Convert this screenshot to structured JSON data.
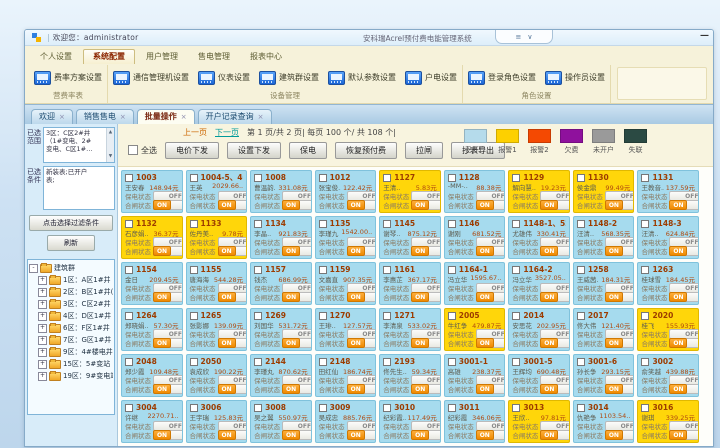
{
  "window": {
    "welcome_label": "欢迎您：administrator",
    "title": "安科瑞Acrel预付费电能管理系统"
  },
  "icons": {
    "logo": "app-logo",
    "collapse": "≡",
    "dropdown": "∨",
    "minimize": "—",
    "tab_close": "×",
    "scroll_up": "▲",
    "scroll_down": "▼",
    "node_expand": "+",
    "node_collapse": "-"
  },
  "menu_tabs": [
    {
      "label": "个人设置",
      "active": false
    },
    {
      "label": "系统配置",
      "active": true
    },
    {
      "label": "用户管理",
      "active": false
    },
    {
      "label": "售电管理",
      "active": false
    },
    {
      "label": "报表中心",
      "active": false
    }
  ],
  "ribbon_groups": [
    {
      "label": "营费率表",
      "buttons": [
        "费率方案设置"
      ]
    },
    {
      "label": "设备管理",
      "buttons": [
        "通信管理机设置",
        "仪表设置",
        "建筑群设置",
        "默认参数设置",
        "户电设置"
      ]
    },
    {
      "label": "角色设置",
      "buttons": [
        "登录角色设置",
        "操作员设置"
      ]
    }
  ],
  "doc_tabs": [
    {
      "label": "欢迎",
      "active": false
    },
    {
      "label": "销售售电",
      "active": false
    },
    {
      "label": "批量操作",
      "active": true
    },
    {
      "label": "开户记录查询",
      "active": false
    }
  ],
  "sidebar": {
    "range_label": "已选 范围",
    "range_lines": [
      "3区：C区2#井",
      "（1#变电、2#",
      "变电、C区1#…"
    ],
    "cond_label": "已选 条件",
    "cond_lines": [
      "新装表;已开户",
      "表;"
    ],
    "filter_button": "点击选择过滤条件",
    "refresh_button": "刷新",
    "tree_root": "建筑群",
    "tree_items": [
      "1区：A区1#井",
      "2区：B区1#井(B区1#…",
      "3区：C区2#井（1#宿…",
      "4区：D区1#井（D区1…",
      "6区：F区1#井（F区1#…",
      "7区：G区1#井",
      "9区：4#楼电井（4#楼…",
      "15区：5#变站（3#变…",
      "19区：9#变电站（2#…"
    ]
  },
  "toolbar": {
    "prev": "上一页",
    "next": "下一页",
    "page_info": "第 1 页/共 2 页|  每页 100 个/ 共 108 个|",
    "select_all": "全选",
    "buttons": [
      "电价下发",
      "设置下发",
      "保电",
      "恢复预付费",
      "拉闸",
      "抄表导出"
    ]
  },
  "legend": [
    {
      "label": "已开户",
      "color": "#b5dbeb"
    },
    {
      "label": "报警1",
      "color": "#fdd000"
    },
    {
      "label": "报警2",
      "color": "#f44902"
    },
    {
      "label": "欠费",
      "color": "#8f119d"
    },
    {
      "label": "未开户",
      "color": "#9a9a9a"
    },
    {
      "label": "失联",
      "color": "#2b4a43"
    }
  ],
  "card_labels": {
    "bao": "保电状态",
    "he": "合闸状态",
    "off": "OFF",
    "on": "ON"
  },
  "card_colors": {
    "open": "#a6dbee",
    "alarm1": "#ffd60a"
  },
  "cards": [
    {
      "room": "1003",
      "name": "王安春",
      "amount": "148.94元",
      "type": "open"
    },
    {
      "room": "1004-5、40-1",
      "name": "王英",
      "amount": "2029.66..",
      "type": "open"
    },
    {
      "room": "1008",
      "name": "曹温韵..",
      "amount": "331.08元",
      "type": "open"
    },
    {
      "room": "1012",
      "name": "张宝俊..",
      "amount": "122.42元",
      "type": "open"
    },
    {
      "room": "1127",
      "name": "王清..",
      "amount": "5.83元",
      "type": "alarm1"
    },
    {
      "room": "1128",
      "name": "-MM-..",
      "amount": "88.38元",
      "type": "open"
    },
    {
      "room": "1129",
      "name": "解向慧..",
      "amount": "19.23元",
      "type": "alarm1"
    },
    {
      "room": "1130",
      "name": "侯金鼎",
      "amount": "99.49元",
      "type": "alarm1"
    },
    {
      "room": "1131",
      "name": "王教音..",
      "amount": "137.59元",
      "type": "open"
    },
    {
      "room": "1132",
      "name": "石彦娟..",
      "amount": "36.37元",
      "type": "alarm1"
    },
    {
      "room": "1133",
      "name": "佐丹美..",
      "amount": "9.78元",
      "type": "alarm1"
    },
    {
      "room": "1134",
      "name": "李晶..",
      "amount": "921.83元",
      "type": "open"
    },
    {
      "room": "1135",
      "name": "李瑾九..",
      "amount": "1542.00..",
      "type": "open"
    },
    {
      "room": "1145",
      "name": "谢琴..",
      "amount": "875.12元",
      "type": "open"
    },
    {
      "room": "1146",
      "name": "谢刚",
      "amount": "681.52元",
      "type": "open"
    },
    {
      "room": "1148-1、522",
      "name": "尤雄伟",
      "amount": "330.41元",
      "type": "open"
    },
    {
      "room": "1148-2",
      "name": "汪清..",
      "amount": "568.35元",
      "type": "open"
    },
    {
      "room": "1148-3",
      "name": "汪清..",
      "amount": "624.84元",
      "type": "open"
    },
    {
      "room": "1154",
      "name": "金日",
      "amount": "209.45元",
      "type": "open"
    },
    {
      "room": "1155",
      "name": "唐海海",
      "amount": "544.28元",
      "type": "open"
    },
    {
      "room": "1157",
      "name": "钱杰",
      "amount": "686.99元",
      "type": "open"
    },
    {
      "room": "1159",
      "name": "文嘉直",
      "amount": "907.35元",
      "type": "open"
    },
    {
      "room": "1161",
      "name": "李惠芷",
      "amount": "367.17元",
      "type": "open"
    },
    {
      "room": "1164-1",
      "name": "冯立华",
      "amount": "1595.67..",
      "type": "open"
    },
    {
      "room": "1164-2",
      "name": "冯立华",
      "amount": "3527.05..",
      "type": "open"
    },
    {
      "room": "1258",
      "name": "王威茜..",
      "amount": "184.31元",
      "type": "open"
    },
    {
      "room": "1263",
      "name": "桂球雪",
      "amount": "184.45元",
      "type": "open"
    },
    {
      "room": "1264",
      "name": "郑晓娟..",
      "amount": "57.30元",
      "type": "open"
    },
    {
      "room": "1265",
      "name": "张影娜",
      "amount": "139.09元",
      "type": "open"
    },
    {
      "room": "1269",
      "name": "刘国华",
      "amount": "531.72元",
      "type": "open"
    },
    {
      "room": "1270",
      "name": "王琲..",
      "amount": "127.57元",
      "type": "open"
    },
    {
      "room": "1271",
      "name": "李清泉",
      "amount": "533.02元",
      "type": "open"
    },
    {
      "room": "2005",
      "name": "牛红争",
      "amount": "479.87元",
      "type": "alarm1"
    },
    {
      "room": "2014",
      "name": "安思花",
      "amount": "202.95元",
      "type": "open"
    },
    {
      "room": "2017",
      "name": "佟大伟",
      "amount": "121.40元",
      "type": "open"
    },
    {
      "room": "2020",
      "name": "桂飞",
      "amount": "155.93元",
      "type": "alarm1"
    },
    {
      "room": "2048",
      "name": "郑少霞",
      "amount": "109.48元",
      "type": "open"
    },
    {
      "room": "2050",
      "name": "袁成欣",
      "amount": "190.22元",
      "type": "open"
    },
    {
      "room": "2144",
      "name": "李瑾丸",
      "amount": "870.62元",
      "type": "open"
    },
    {
      "room": "2148",
      "name": "田红仙",
      "amount": "186.74元",
      "type": "open"
    },
    {
      "room": "2193",
      "name": "佟先生..",
      "amount": "59.34元",
      "type": "open"
    },
    {
      "room": "3001-1",
      "name": "高雄",
      "amount": "238.37元",
      "type": "open"
    },
    {
      "room": "3001-5",
      "name": "王辉均",
      "amount": "690.48元",
      "type": "open"
    },
    {
      "room": "3001-6",
      "name": "孙长争",
      "amount": "293.15元",
      "type": "open"
    },
    {
      "room": "3002",
      "name": "俞笑越",
      "amount": "439.88元",
      "type": "open"
    },
    {
      "room": "3004",
      "name": "许继",
      "amount": "2270.71..",
      "type": "open"
    },
    {
      "room": "3006",
      "name": "王宇瑞",
      "amount": "125.83元",
      "type": "open"
    },
    {
      "room": "3008",
      "name": "吴之翼",
      "amount": "550.97元",
      "type": "open"
    },
    {
      "room": "3009",
      "name": "吴成忠",
      "amount": "885.76元",
      "type": "open"
    },
    {
      "room": "3010",
      "name": "纪彩霞..",
      "amount": "117.49元",
      "type": "open"
    },
    {
      "room": "3011",
      "name": "纪彩霞",
      "amount": "346.06元",
      "type": "open"
    },
    {
      "room": "3013",
      "name": "王欣..",
      "amount": "97.81元",
      "type": "alarm1"
    },
    {
      "room": "3014",
      "name": "仇艳争",
      "amount": "1103.54..",
      "type": "open"
    },
    {
      "room": "3016",
      "name": "谢琪",
      "amount": "339.25元",
      "type": "alarm1"
    }
  ]
}
